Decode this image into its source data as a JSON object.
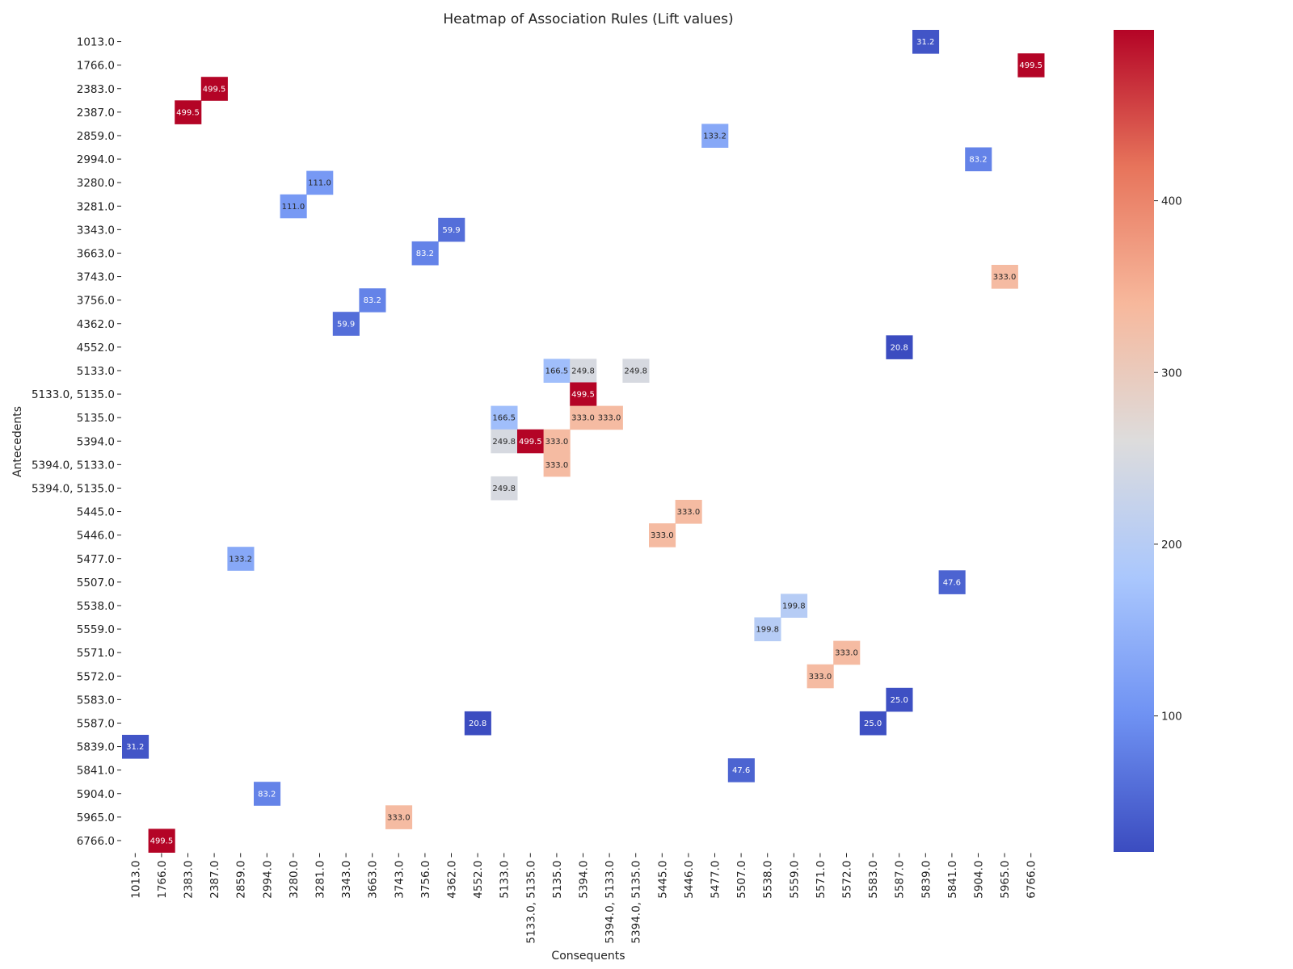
{
  "chart_data": {
    "type": "heatmap",
    "title": "Heatmap of Association Rules (Lift values)",
    "xlabel": "Consequents",
    "ylabel": "Antecedents",
    "x_categories": [
      "1013.0",
      "1766.0",
      "2383.0",
      "2387.0",
      "2859.0",
      "2994.0",
      "3280.0",
      "3281.0",
      "3343.0",
      "3663.0",
      "3743.0",
      "3756.0",
      "4362.0",
      "4552.0",
      "5133.0",
      "5133.0, 5135.0",
      "5135.0",
      "5394.0",
      "5394.0, 5133.0",
      "5394.0, 5135.0",
      "5445.0",
      "5446.0",
      "5477.0",
      "5507.0",
      "5538.0",
      "5559.0",
      "5571.0",
      "5572.0",
      "5583.0",
      "5587.0",
      "5839.0",
      "5841.0",
      "5904.0",
      "5965.0",
      "6766.0"
    ],
    "y_categories": [
      "1013.0",
      "1766.0",
      "2383.0",
      "2387.0",
      "2859.0",
      "2994.0",
      "3280.0",
      "3281.0",
      "3343.0",
      "3663.0",
      "3743.0",
      "3756.0",
      "4362.0",
      "4552.0",
      "5133.0",
      "5133.0, 5135.0",
      "5135.0",
      "5394.0",
      "5394.0, 5133.0",
      "5394.0, 5135.0",
      "5445.0",
      "5446.0",
      "5477.0",
      "5507.0",
      "5538.0",
      "5559.0",
      "5571.0",
      "5572.0",
      "5583.0",
      "5587.0",
      "5839.0",
      "5841.0",
      "5904.0",
      "5965.0",
      "6766.0"
    ],
    "cells": [
      {
        "row": "1013.0",
        "col": "5839.0",
        "value": 31.2
      },
      {
        "row": "1766.0",
        "col": "6766.0",
        "value": 499.5
      },
      {
        "row": "2383.0",
        "col": "2387.0",
        "value": 499.5
      },
      {
        "row": "2387.0",
        "col": "2383.0",
        "value": 499.5
      },
      {
        "row": "2859.0",
        "col": "5477.0",
        "value": 133.2
      },
      {
        "row": "2994.0",
        "col": "5904.0",
        "value": 83.2
      },
      {
        "row": "3280.0",
        "col": "3281.0",
        "value": 111.0
      },
      {
        "row": "3281.0",
        "col": "3280.0",
        "value": 111.0
      },
      {
        "row": "3343.0",
        "col": "4362.0",
        "value": 59.9
      },
      {
        "row": "3663.0",
        "col": "3756.0",
        "value": 83.2
      },
      {
        "row": "3743.0",
        "col": "5965.0",
        "value": 333.0
      },
      {
        "row": "3756.0",
        "col": "3663.0",
        "value": 83.2
      },
      {
        "row": "4362.0",
        "col": "3343.0",
        "value": 59.9
      },
      {
        "row": "4552.0",
        "col": "5587.0",
        "value": 20.8
      },
      {
        "row": "5133.0",
        "col": "5135.0",
        "value": 166.5
      },
      {
        "row": "5133.0",
        "col": "5394.0",
        "value": 249.8
      },
      {
        "row": "5133.0",
        "col": "5394.0, 5135.0",
        "value": 249.8
      },
      {
        "row": "5133.0, 5135.0",
        "col": "5394.0",
        "value": 499.5
      },
      {
        "row": "5135.0",
        "col": "5133.0",
        "value": 166.5
      },
      {
        "row": "5135.0",
        "col": "5394.0",
        "value": 333.0
      },
      {
        "row": "5135.0",
        "col": "5394.0, 5133.0",
        "value": 333.0
      },
      {
        "row": "5394.0",
        "col": "5133.0",
        "value": 249.8
      },
      {
        "row": "5394.0",
        "col": "5133.0, 5135.0",
        "value": 499.5
      },
      {
        "row": "5394.0",
        "col": "5135.0",
        "value": 333.0
      },
      {
        "row": "5394.0, 5133.0",
        "col": "5135.0",
        "value": 333.0
      },
      {
        "row": "5394.0, 5135.0",
        "col": "5133.0",
        "value": 249.8
      },
      {
        "row": "5445.0",
        "col": "5446.0",
        "value": 333.0
      },
      {
        "row": "5446.0",
        "col": "5445.0",
        "value": 333.0
      },
      {
        "row": "5477.0",
        "col": "2859.0",
        "value": 133.2
      },
      {
        "row": "5507.0",
        "col": "5841.0",
        "value": 47.6
      },
      {
        "row": "5538.0",
        "col": "5559.0",
        "value": 199.8
      },
      {
        "row": "5559.0",
        "col": "5538.0",
        "value": 199.8
      },
      {
        "row": "5571.0",
        "col": "5572.0",
        "value": 333.0
      },
      {
        "row": "5572.0",
        "col": "5571.0",
        "value": 333.0
      },
      {
        "row": "5583.0",
        "col": "5587.0",
        "value": 25.0
      },
      {
        "row": "5587.0",
        "col": "4552.0",
        "value": 20.8
      },
      {
        "row": "5587.0",
        "col": "5583.0",
        "value": 25.0
      },
      {
        "row": "5839.0",
        "col": "1013.0",
        "value": 31.2
      },
      {
        "row": "5841.0",
        "col": "5507.0",
        "value": 47.6
      },
      {
        "row": "5904.0",
        "col": "2994.0",
        "value": 83.2
      },
      {
        "row": "5965.0",
        "col": "3743.0",
        "value": 333.0
      },
      {
        "row": "6766.0",
        "col": "1766.0",
        "value": 499.5
      }
    ],
    "colormap": "coolwarm",
    "colormap_stops": [
      "#3b4cc0",
      "#6f92f3",
      "#aac7fd",
      "#dddcdc",
      "#f7b89c",
      "#e7745b",
      "#b40426"
    ],
    "vmin": 20.8,
    "vmax": 499.5,
    "colorbar_ticks": [
      100,
      200,
      300,
      400
    ],
    "annotations": true,
    "grid": false
  }
}
